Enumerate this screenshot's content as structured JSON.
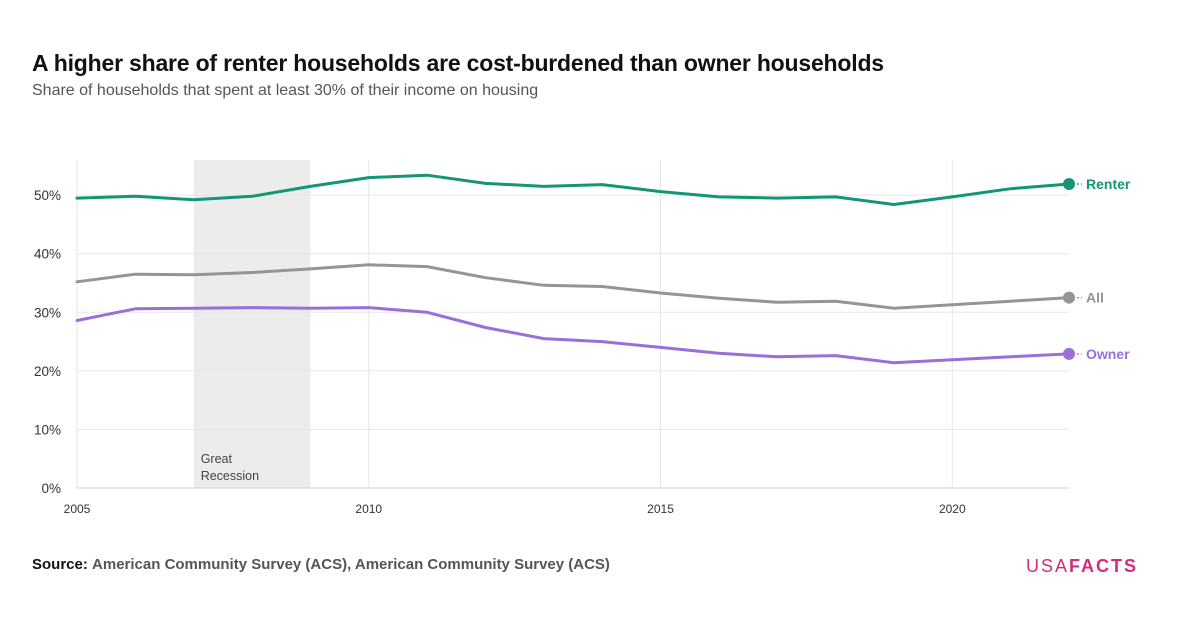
{
  "title": "A higher share of renter households are cost-burdened than owner households",
  "subtitle": "Share of households that spent at least 30% of their income on housing",
  "source": {
    "label": "Source:",
    "text": "American Community Survey (ACS), American Community Survey (ACS)"
  },
  "logo": {
    "part1": "USA",
    "part2": "FACTS"
  },
  "chart_data": {
    "type": "line",
    "xlim": [
      2005,
      2022
    ],
    "ylim": [
      0,
      0.56
    ],
    "x_ticks": [
      {
        "value": 2005,
        "label": "2005"
      },
      {
        "value": 2010,
        "label": "2010"
      },
      {
        "value": 2015,
        "label": "2015"
      },
      {
        "value": 2020,
        "label": "2020"
      }
    ],
    "y_ticks": [
      {
        "value": 0,
        "label": "0%"
      },
      {
        "value": 0.1,
        "label": "10%"
      },
      {
        "value": 0.2,
        "label": "20%"
      },
      {
        "value": 0.3,
        "label": "30%"
      },
      {
        "value": 0.4,
        "label": "40%"
      },
      {
        "value": 0.5,
        "label": "50%"
      }
    ],
    "grid": true,
    "shaded_region": {
      "start": 2007,
      "end": 2009,
      "label": [
        "Great",
        "Recession"
      ]
    },
    "x": [
      2005,
      2006,
      2007,
      2008,
      2009,
      2010,
      2011,
      2012,
      2013,
      2014,
      2015,
      2016,
      2017,
      2018,
      2019,
      2020,
      2021,
      2022
    ],
    "series": [
      {
        "name": "Renter",
        "color": "#149673",
        "values": [
          0.495,
          0.498,
          0.492,
          0.498,
          0.515,
          0.53,
          0.534,
          0.52,
          0.515,
          0.518,
          0.506,
          0.497,
          0.495,
          0.497,
          0.484,
          0.497,
          0.511,
          0.519
        ]
      },
      {
        "name": "All",
        "color": "#959595",
        "values": [
          0.352,
          0.365,
          0.364,
          0.368,
          0.374,
          0.381,
          0.378,
          0.359,
          0.346,
          0.344,
          0.333,
          0.324,
          0.317,
          0.319,
          0.307,
          0.313,
          0.319,
          0.325
        ]
      },
      {
        "name": "Owner",
        "color": "#9b6fd9",
        "values": [
          0.286,
          0.306,
          0.307,
          0.308,
          0.307,
          0.308,
          0.3,
          0.274,
          0.255,
          0.25,
          0.24,
          0.23,
          0.224,
          0.226,
          0.214,
          0.219,
          0.224,
          0.229
        ]
      }
    ]
  }
}
